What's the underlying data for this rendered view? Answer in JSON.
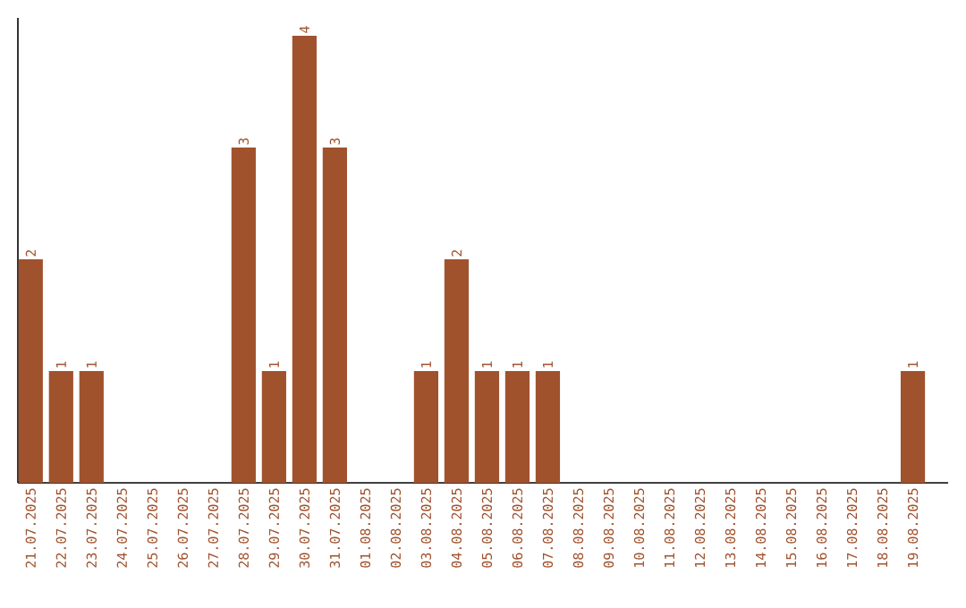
{
  "chart_data": {
    "type": "bar",
    "categories": [
      "21.07.2025",
      "22.07.2025",
      "23.07.2025",
      "24.07.2025",
      "25.07.2025",
      "26.07.2025",
      "27.07.2025",
      "28.07.2025",
      "29.07.2025",
      "30.07.2025",
      "31.07.2025",
      "01.08.2025",
      "02.08.2025",
      "03.08.2025",
      "04.08.2025",
      "05.08.2025",
      "06.08.2025",
      "07.08.2025",
      "08.08.2025",
      "09.08.2025",
      "10.08.2025",
      "11.08.2025",
      "12.08.2025",
      "13.08.2025",
      "14.08.2025",
      "15.08.2025",
      "16.08.2025",
      "17.08.2025",
      "18.08.2025",
      "19.08.2025"
    ],
    "values": [
      2,
      1,
      1,
      0,
      0,
      0,
      0,
      3,
      1,
      4,
      3,
      0,
      0,
      1,
      2,
      1,
      1,
      1,
      0,
      0,
      0,
      0,
      0,
      0,
      0,
      0,
      0,
      0,
      0,
      1
    ],
    "value_labels": [
      "2",
      "1",
      "1",
      null,
      null,
      null,
      null,
      "3",
      "1",
      "4",
      "3",
      null,
      null,
      "1",
      "2",
      "1",
      "1",
      "1",
      null,
      null,
      null,
      null,
      null,
      null,
      null,
      null,
      null,
      null,
      null,
      "1"
    ],
    "color": "#a0522d"
  }
}
